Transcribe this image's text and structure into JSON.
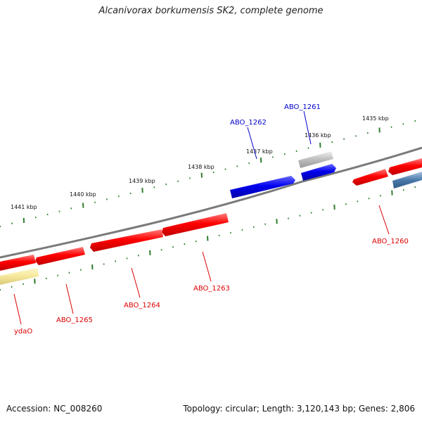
{
  "title": "Alcanivorax borkumensis SK2, complete genome",
  "accession": "Accession: NC_008260",
  "summary": "Topology: circular; Length: 3,120,143 bp; Genes: 2,806",
  "colors": {
    "backbone": "#808080",
    "forward_ticks": "#2e7d2e",
    "red_gene": "#ff0000",
    "blue_gene": "#0000ee",
    "red_label": "#dd0000",
    "blue_label": "#0000cc"
  },
  "kbp_labels": [
    "1435 kbp",
    "1436 kbp",
    "1437 kbp",
    "1438 kbp",
    "1439 kbp",
    "1440 kbp",
    "1441 kbp"
  ],
  "gene_labels": [
    {
      "name": "ABO_1261",
      "color": "blue"
    },
    {
      "name": "ABO_1262",
      "color": "blue"
    },
    {
      "name": "ABO_1260",
      "color": "red"
    },
    {
      "name": "ABO_1263",
      "color": "red"
    },
    {
      "name": "ABO_1264",
      "color": "red"
    },
    {
      "name": "ABO_1265",
      "color": "red"
    },
    {
      "name": "ydaO",
      "color": "red"
    }
  ]
}
